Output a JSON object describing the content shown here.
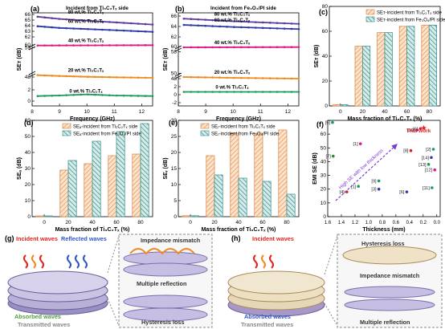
{
  "panels": {
    "a": {
      "letter": "(a)",
      "note": "Incident from Ti₃C₂Tₓ side"
    },
    "b": {
      "letter": "(b)",
      "note": "Incident from Fe₃O₄/PI side"
    },
    "c": {
      "letter": "(c)"
    },
    "d": {
      "letter": "(d)"
    },
    "e": {
      "letter": "(e)"
    },
    "f": {
      "letter": "(f)",
      "this_work": "This work",
      "arrow_text": "High SE with low thickness"
    },
    "g": {
      "letter": "(g)",
      "incident": "Incident waves",
      "reflected": "Reflected waves",
      "absorbed": "Absorbed waves",
      "transmitted": "Transmitted waves",
      "impedance": "Impedance mismatch",
      "multiple": "Multiple reflection",
      "hysteresis": "Hysteresis loss"
    },
    "h": {
      "letter": "(h)",
      "incident": "Incident waves",
      "absorbed": "Absorbed waves",
      "transmitted": "Transmitted waves",
      "hysteresis": "Hysteresis loss",
      "impedance": "Impedance mismatch",
      "multiple": "Multiple reflection"
    }
  },
  "colors": {
    "c80": "#5b3a9e",
    "c60": "#2d3aa8",
    "c40": "#e0168a",
    "c20": "#f08a1e",
    "c0": "#1a9a5c",
    "orange": "#f3a35f",
    "teal": "#2f8a84",
    "fnum": "#5b3ac0"
  },
  "chart_data": [
    {
      "id": "a",
      "type": "line",
      "xlabel": "Frequency (GHz)",
      "ylabel": "SEᴛ (dB)",
      "xlim": [
        8,
        12.4
      ],
      "xticks": [
        8,
        9,
        10,
        11,
        12
      ],
      "yticks_top": [
        62,
        63,
        64,
        65,
        66
      ],
      "yticks_mid": [
        48,
        59,
        60
      ],
      "yticks_bot": [
        0,
        2
      ],
      "series": [
        {
          "name": "80 wt.% Ti₃C₂Tₓ",
          "color": "#5b3a9e",
          "x": [
            8.2,
            9,
            10,
            11,
            12.4
          ],
          "y": [
            65.6,
            65.2,
            64.9,
            64.6,
            64.2
          ]
        },
        {
          "name": "60 wt.% Ti₃C₂Tₓ",
          "color": "#2d3aa8",
          "x": [
            8.2,
            9,
            10,
            11,
            12.4
          ],
          "y": [
            63.9,
            63.6,
            63.4,
            63.2,
            62.9
          ]
        },
        {
          "name": "40 wt.% Ti₃C₂Tₓ",
          "color": "#e0168a",
          "x": [
            8.2,
            12.4
          ],
          "y": [
            59.8,
            59.9
          ]
        },
        {
          "name": "20 wt.% Ti₃C₂Tₓ",
          "color": "#f08a1e",
          "x": [
            8.2,
            9,
            10,
            11,
            12.4
          ],
          "y": [
            48.7,
            48.4,
            48.1,
            47.9,
            47.7
          ]
        },
        {
          "name": "0 wt.% Ti₃C₂Tₓ",
          "color": "#1a9a5c",
          "x": [
            8.2,
            9,
            10,
            11,
            12.4
          ],
          "y": [
            0.9,
            1.0,
            1.2,
            1.0,
            0.9
          ]
        }
      ]
    },
    {
      "id": "b",
      "type": "line",
      "xlabel": "Frequency (GHz)",
      "ylabel": "SEᴛ (dB)",
      "xlim": [
        8,
        12.4
      ],
      "xticks": [
        8,
        9,
        10,
        11,
        12
      ],
      "yticks_top": [
        62,
        64,
        66
      ],
      "yticks_mid": [
        48,
        50,
        58,
        60
      ],
      "yticks_bot": [
        -2,
        0,
        2
      ],
      "series": [
        {
          "name": "80 wt.% Ti₃C₂Tₓ",
          "color": "#5b3a9e",
          "x": [
            8.2,
            10,
            12.4
          ],
          "y": [
            65.5,
            65.0,
            64.5
          ]
        },
        {
          "name": "60 wt.% Ti₃C₂Tₓ",
          "color": "#2d3aa8",
          "x": [
            8.2,
            10,
            12.4
          ],
          "y": [
            64.3,
            63.9,
            63.5
          ]
        },
        {
          "name": "40 wt.% Ti₃C₂Tₓ",
          "color": "#e0168a",
          "x": [
            8.2,
            12.4
          ],
          "y": [
            59.7,
            59.8
          ]
        },
        {
          "name": "20 wt.% Ti₃C₂Tₓ",
          "color": "#f08a1e",
          "x": [
            8.2,
            10,
            12.4
          ],
          "y": [
            48.6,
            48.3,
            48.0
          ]
        },
        {
          "name": "0 wt.% Ti₃C₂Tₓ",
          "color": "#1a9a5c",
          "x": [
            8.2,
            12.4
          ],
          "y": [
            0.7,
            0.7
          ]
        }
      ]
    },
    {
      "id": "c",
      "type": "bar",
      "xlabel": "Mass fraction of Ti₃C₂Tₓ (%)",
      "ylabel": "SEᴛ (dB)",
      "categories": [
        "0",
        "20",
        "40",
        "60",
        "80"
      ],
      "ylim": [
        0,
        80
      ],
      "yticks": [
        0,
        20,
        40,
        60,
        80
      ],
      "series": [
        {
          "name": "SEᴛ-incident from Ti₃C₂Tₓ side",
          "values": [
            1,
            48,
            59,
            64,
            65
          ]
        },
        {
          "name": "SEᴛ-incident from Fe₃O₄/PI side",
          "values": [
            1,
            48,
            59,
            64,
            65
          ]
        }
      ]
    },
    {
      "id": "d",
      "type": "bar",
      "xlabel": "Mass fraction of Ti₃C₂Tₓ (%)",
      "ylabel": "SEₐ (dB)",
      "categories": [
        "0",
        "20",
        "40",
        "60",
        "80"
      ],
      "ylim": [
        0,
        60
      ],
      "yticks": [
        0,
        10,
        20,
        30,
        40,
        50,
        60
      ],
      "series": [
        {
          "name": "SEₐ-incident from Ti₃C₂Tₓ side",
          "values": [
            0.5,
            29,
            33,
            38,
            39
          ]
        },
        {
          "name": "SEₐ-incident from Fe₃O₄/PI side",
          "values": [
            0.5,
            35,
            47,
            53,
            58
          ]
        }
      ]
    },
    {
      "id": "e",
      "type": "bar",
      "xlabel": "Mass fraction of Ti₃C₂Tₓ (%)",
      "ylabel": "SEᵣ (dB)",
      "categories": [
        "0",
        "20",
        "40",
        "60",
        "80"
      ],
      "ylim": [
        0,
        30
      ],
      "yticks": [
        0,
        5,
        10,
        15,
        20,
        25,
        30
      ],
      "series": [
        {
          "name": "SEᵣ-incident from Ti₃C₂Tₓ side",
          "values": [
            0.3,
            19,
            26,
            26,
            27
          ]
        },
        {
          "name": "SEᵣ-incident from Fe₃O₄/PI side",
          "values": [
            0.3,
            13,
            12,
            11,
            7
          ]
        }
      ]
    },
    {
      "id": "f",
      "type": "scatter",
      "xlabel": "Thickness (mm)",
      "ylabel": "EMI SE (dB)",
      "xlim": [
        1.6,
        -0.05
      ],
      "ylim": [
        0,
        70
      ],
      "xticks": [
        1.6,
        1.4,
        1.2,
        1.0,
        0.8,
        0.6,
        0.4,
        0.2,
        0.0
      ],
      "yticks": [
        0,
        10,
        20,
        30,
        40,
        50,
        60
      ],
      "points": [
        {
          "x": 1.53,
          "y": 68.5,
          "label": "[5]",
          "color": "#1a9a5c"
        },
        {
          "x": 1.52,
          "y": 44,
          "label": "[7]",
          "color": "#2d8a2d"
        },
        {
          "x": 1.12,
          "y": 53,
          "label": "[1]",
          "color": "#e0168a"
        },
        {
          "x": 1.15,
          "y": 22,
          "label": "[1]",
          "color": "#1a9a5c"
        },
        {
          "x": 1.32,
          "y": 18,
          "label": "[4]",
          "color": "#e02020"
        },
        {
          "x": 0.85,
          "y": 26,
          "label": "[9]",
          "color": "#1a9a5c"
        },
        {
          "x": 0.85,
          "y": 20,
          "label": "[3]",
          "color": "#2d3aa8"
        },
        {
          "x": 0.44,
          "y": 18,
          "label": "[6]",
          "color": "#2d3aa8"
        },
        {
          "x": 0.38,
          "y": 48,
          "label": "[8]",
          "color": "#e02020"
        },
        {
          "x": 0.05,
          "y": 49,
          "label": "[2]",
          "color": "#1a9a5c"
        },
        {
          "x": 0.08,
          "y": 43,
          "label": "[14]",
          "color": "#2d3aa8"
        },
        {
          "x": 0.12,
          "y": 38,
          "label": "[13]",
          "color": "#1a9a5c"
        },
        {
          "x": 0.03,
          "y": 34,
          "label": "[12]",
          "color": "#e0168a"
        },
        {
          "x": 0.07,
          "y": 21,
          "label": "[11]",
          "color": "#1a9a5c"
        },
        {
          "x": 0.29,
          "y": 63,
          "label": "[10]",
          "color": "#e0168a"
        },
        {
          "x": 0.24,
          "y": 64,
          "label": "[6]",
          "color": "#e02020"
        },
        {
          "x": 0.19,
          "y": 64.5,
          "label": "This work",
          "color": "#e02020"
        }
      ]
    }
  ]
}
